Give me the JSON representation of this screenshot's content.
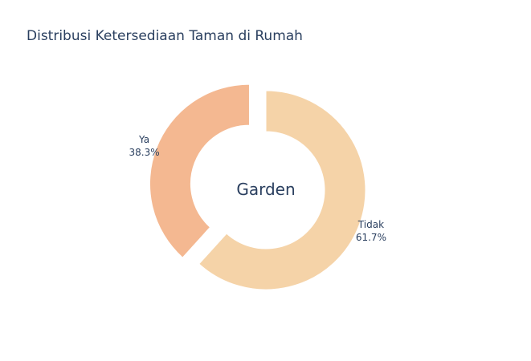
{
  "chart_data": {
    "type": "pie",
    "title": "Distribusi Ketersediaan Taman di Rumah",
    "center_text": "Garden",
    "hole": true,
    "slices": [
      {
        "label": "Tidak",
        "value": 61.7,
        "percent_text": "61.7%",
        "color": "#f5d3a8",
        "pulled": false
      },
      {
        "label": "Ya",
        "value": 38.3,
        "percent_text": "38.3%",
        "color": "#f4b891",
        "pulled": true
      }
    ],
    "direction": "clockwise",
    "start_angle": "top",
    "legend": "none"
  }
}
